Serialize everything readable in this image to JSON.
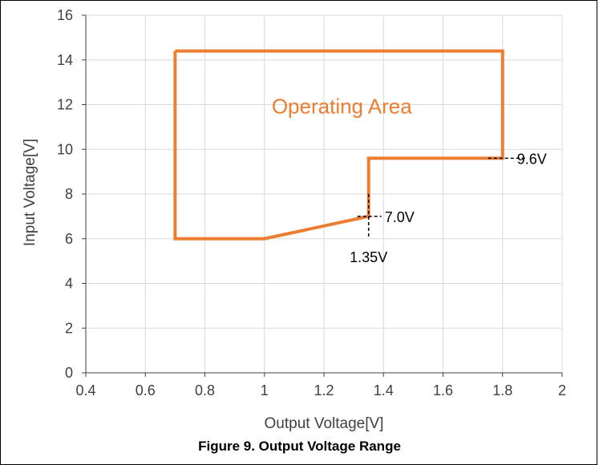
{
  "caption": "Figure 9. Output Voltage Range",
  "chart_data": {
    "type": "line",
    "title": "",
    "xlabel": "Output Voltage[V]",
    "ylabel": "Input Voltage[V]",
    "xlim": [
      0.4,
      2
    ],
    "ylim": [
      0,
      16
    ],
    "xticks": [
      0.4,
      0.6,
      0.8,
      1,
      1.2,
      1.4,
      1.6,
      1.8,
      2
    ],
    "xtick_labels": [
      "0.4",
      "0.6",
      "0.8",
      "1",
      "1.2",
      "1.4",
      "1.6",
      "1.8",
      "2"
    ],
    "yticks": [
      0,
      2,
      4,
      6,
      8,
      10,
      12,
      14,
      16
    ],
    "ytick_labels": [
      "0",
      "2",
      "4",
      "6",
      "8",
      "10",
      "12",
      "14",
      "16"
    ],
    "grid": true,
    "series": [
      {
        "x": [
          0.7,
          1.8,
          1.8,
          1.35,
          1.35,
          1.0,
          0.7,
          0.7
        ],
        "y": [
          14.4,
          14.4,
          9.6,
          9.6,
          7.0,
          6.0,
          6.0,
          14.4
        ],
        "color": "#ED7D31"
      }
    ],
    "area_label": {
      "text": "Operating Area",
      "x": 1.26,
      "y": 11.6,
      "color": "#ED7D31"
    },
    "annotations": [
      {
        "text": "9.6V",
        "x": 1.8,
        "y": 9.6
      },
      {
        "text": "7.0V",
        "x": 1.35,
        "y": 7.0
      },
      {
        "text": "1.35V",
        "x": 1.35,
        "y": 7.0
      }
    ]
  }
}
